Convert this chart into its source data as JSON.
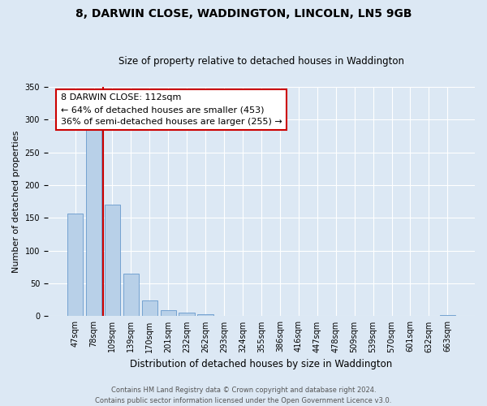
{
  "title": "8, DARWIN CLOSE, WADDINGTON, LINCOLN, LN5 9GB",
  "subtitle": "Size of property relative to detached houses in Waddington",
  "xlabel": "Distribution of detached houses by size in Waddington",
  "ylabel": "Number of detached properties",
  "bar_labels": [
    "47sqm",
    "78sqm",
    "109sqm",
    "139sqm",
    "170sqm",
    "201sqm",
    "232sqm",
    "262sqm",
    "293sqm",
    "324sqm",
    "355sqm",
    "386sqm",
    "416sqm",
    "447sqm",
    "478sqm",
    "509sqm",
    "539sqm",
    "570sqm",
    "601sqm",
    "632sqm",
    "663sqm"
  ],
  "bar_values": [
    156,
    286,
    170,
    65,
    24,
    9,
    6,
    3,
    0,
    0,
    0,
    0,
    0,
    1,
    0,
    0,
    0,
    0,
    0,
    0,
    2
  ],
  "bar_color": "#b8d0e8",
  "bar_edge_color": "#6699cc",
  "ylim": [
    0,
    350
  ],
  "yticks": [
    0,
    50,
    100,
    150,
    200,
    250,
    300,
    350
  ],
  "vline_x_idx": 2,
  "vline_color": "#cc0000",
  "annotation_title": "8 DARWIN CLOSE: 112sqm",
  "annotation_line1": "← 64% of detached houses are smaller (453)",
  "annotation_line2": "36% of semi-detached houses are larger (255) →",
  "annotation_box_color": "#ffffff",
  "annotation_box_edge": "#cc0000",
  "footer1": "Contains HM Land Registry data © Crown copyright and database right 2024.",
  "footer2": "Contains public sector information licensed under the Open Government Licence v3.0.",
  "bg_color": "#dce8f4",
  "plot_bg_color": "#dce8f4",
  "grid_color": "#ffffff",
  "title_fontsize": 10,
  "subtitle_fontsize": 8.5,
  "xlabel_fontsize": 8.5,
  "ylabel_fontsize": 8,
  "tick_fontsize": 7,
  "footer_fontsize": 6,
  "ann_fontsize": 8
}
